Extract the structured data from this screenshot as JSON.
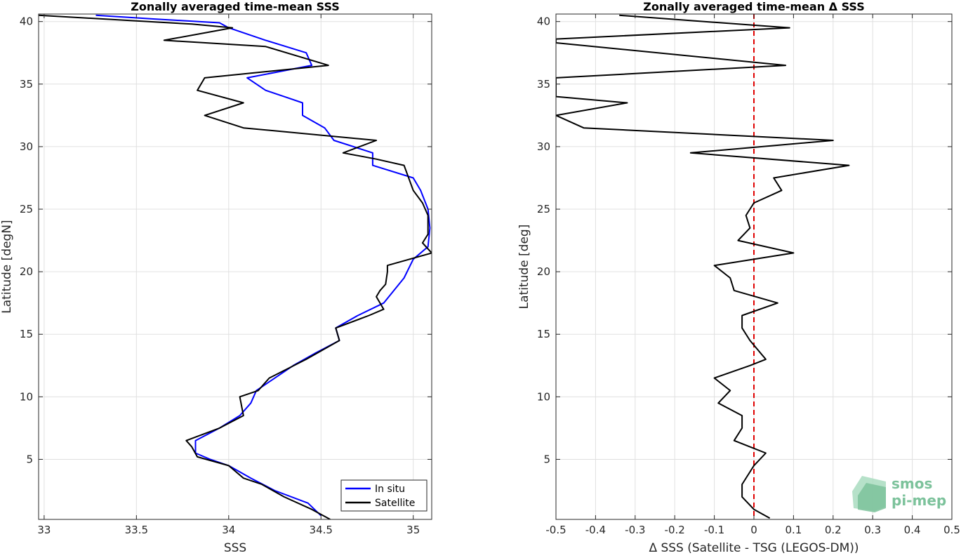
{
  "chart_data": [
    {
      "type": "line",
      "title": "Zonally averaged time-mean SSS",
      "xlabel": "SSS",
      "ylabel": "Latitude [degN]",
      "xlim": [
        32.97,
        35.1
      ],
      "ylim": [
        0.2,
        40.6
      ],
      "xticks": [
        33,
        33.5,
        34,
        34.5,
        35
      ],
      "xtick_labels": [
        "33",
        "33.5",
        "34",
        "34.5",
        "35"
      ],
      "yticks": [
        5,
        10,
        15,
        20,
        25,
        30,
        35,
        40
      ],
      "ytick_labels": [
        "5",
        "10",
        "15",
        "20",
        "25",
        "30",
        "35",
        "40"
      ],
      "grid": true,
      "legend": "bottom-right",
      "series": [
        {
          "name": "In situ",
          "color": "#0000ff",
          "points": [
            [
              34.5,
              0.5
            ],
            [
              34.43,
              1.5
            ],
            [
              34.25,
              2.5
            ],
            [
              34.12,
              3.5
            ],
            [
              34.0,
              4.5
            ],
            [
              33.9,
              5.0
            ],
            [
              33.82,
              5.5
            ],
            [
              33.82,
              6.5
            ],
            [
              33.95,
              7.5
            ],
            [
              34.06,
              8.5
            ],
            [
              34.12,
              9.5
            ],
            [
              34.15,
              10.5
            ],
            [
              34.3,
              12.0
            ],
            [
              34.35,
              12.5
            ],
            [
              34.47,
              13.5
            ],
            [
              34.6,
              14.5
            ],
            [
              34.58,
              15.5
            ],
            [
              34.7,
              16.5
            ],
            [
              34.84,
              17.5
            ],
            [
              34.95,
              19.5
            ],
            [
              35.0,
              21.0
            ],
            [
              35.08,
              22.0
            ],
            [
              35.09,
              23.5
            ],
            [
              35.08,
              25.0
            ],
            [
              35.04,
              26.5
            ],
            [
              35.0,
              27.5
            ],
            [
              34.78,
              28.5
            ],
            [
              34.78,
              29.5
            ],
            [
              34.57,
              30.5
            ],
            [
              34.52,
              31.5
            ],
            [
              34.4,
              32.5
            ],
            [
              34.4,
              33.5
            ],
            [
              34.3,
              34.0
            ],
            [
              34.2,
              34.5
            ],
            [
              34.1,
              35.5
            ],
            [
              34.45,
              36.5
            ],
            [
              34.42,
              37.5
            ],
            [
              34.2,
              38.5
            ],
            [
              34.0,
              39.5
            ],
            [
              33.95,
              39.9
            ],
            [
              33.6,
              40.2
            ],
            [
              33.28,
              40.5
            ]
          ]
        },
        {
          "name": "Satellite",
          "color": "#000000",
          "points": [
            [
              34.55,
              0.2
            ],
            [
              34.45,
              1.0
            ],
            [
              34.3,
              2.0
            ],
            [
              34.18,
              3.0
            ],
            [
              34.08,
              3.5
            ],
            [
              34.0,
              4.5
            ],
            [
              33.83,
              5.2
            ],
            [
              33.8,
              6.0
            ],
            [
              33.77,
              6.5
            ],
            [
              33.95,
              7.5
            ],
            [
              34.08,
              8.5
            ],
            [
              34.06,
              10.0
            ],
            [
              34.16,
              10.5
            ],
            [
              34.22,
              11.5
            ],
            [
              34.42,
              13.0
            ],
            [
              34.6,
              14.5
            ],
            [
              34.58,
              15.5
            ],
            [
              34.76,
              16.5
            ],
            [
              34.84,
              17.0
            ],
            [
              34.8,
              18.0
            ],
            [
              34.82,
              18.5
            ],
            [
              34.85,
              19.0
            ],
            [
              34.86,
              20.0
            ],
            [
              34.86,
              20.5
            ],
            [
              35.1,
              21.5
            ],
            [
              35.05,
              22.3
            ],
            [
              35.08,
              23.0
            ],
            [
              35.08,
              24.5
            ],
            [
              35.05,
              25.5
            ],
            [
              35.0,
              26.5
            ],
            [
              34.95,
              28.5
            ],
            [
              34.8,
              29.0
            ],
            [
              34.62,
              29.5
            ],
            [
              34.8,
              30.5
            ],
            [
              34.08,
              31.5
            ],
            [
              33.87,
              32.5
            ],
            [
              34.08,
              33.5
            ],
            [
              33.83,
              34.5
            ],
            [
              33.87,
              35.5
            ],
            [
              34.54,
              36.5
            ],
            [
              34.2,
              38.0
            ],
            [
              33.65,
              38.5
            ],
            [
              34.02,
              39.5
            ],
            [
              33.8,
              39.8
            ],
            [
              32.97,
              40.5
            ]
          ]
        }
      ],
      "legend_entries": [
        "In situ",
        "Satellite"
      ]
    },
    {
      "type": "line",
      "title": "Zonally averaged time-mean Δ SSS",
      "xlabel": "Δ SSS (Satellite - TSG (LEGOS-DM))",
      "ylabel": "Latitude [deg]",
      "xlim": [
        -0.5,
        0.5
      ],
      "ylim": [
        0.2,
        40.6
      ],
      "xticks": [
        -0.5,
        -0.4,
        -0.3,
        -0.2,
        -0.1,
        0,
        0.1,
        0.2,
        0.3,
        0.4,
        0.5
      ],
      "xtick_labels": [
        "-0.5",
        "-0.4",
        "-0.3",
        "-0.2",
        "-0.1",
        "0",
        "0.1",
        "0.2",
        "0.3",
        "0.4",
        "0.5"
      ],
      "yticks": [
        5,
        10,
        15,
        20,
        25,
        30,
        35,
        40
      ],
      "ytick_labels": [
        "5",
        "10",
        "15",
        "20",
        "25",
        "30",
        "35",
        "40"
      ],
      "grid": true,
      "reference_line": {
        "x": 0,
        "color": "#e00000",
        "style": "dashed"
      },
      "series": [
        {
          "color": "#000000",
          "points": [
            [
              0.04,
              0.3
            ],
            [
              0.0,
              1.0
            ],
            [
              -0.03,
              2.0
            ],
            [
              -0.03,
              3.0
            ],
            [
              0.0,
              4.5
            ],
            [
              0.03,
              5.5
            ],
            [
              -0.05,
              6.5
            ],
            [
              -0.03,
              7.5
            ],
            [
              -0.03,
              8.5
            ],
            [
              -0.09,
              9.5
            ],
            [
              -0.06,
              10.5
            ],
            [
              -0.1,
              11.5
            ],
            [
              -0.01,
              12.5
            ],
            [
              0.03,
              13.0
            ],
            [
              -0.01,
              14.5
            ],
            [
              -0.03,
              15.5
            ],
            [
              -0.03,
              16.5
            ],
            [
              0.06,
              17.5
            ],
            [
              -0.05,
              18.5
            ],
            [
              -0.06,
              19.5
            ],
            [
              -0.1,
              20.5
            ],
            [
              0.1,
              21.5
            ],
            [
              -0.04,
              22.5
            ],
            [
              -0.01,
              23.5
            ],
            [
              -0.02,
              24.5
            ],
            [
              0.0,
              25.5
            ],
            [
              0.07,
              26.5
            ],
            [
              0.05,
              27.5
            ],
            [
              0.24,
              28.5
            ],
            [
              -0.16,
              29.5
            ],
            [
              0.2,
              30.5
            ],
            [
              -0.43,
              31.5
            ],
            [
              -0.5,
              32.5
            ],
            [
              -0.32,
              33.5
            ],
            [
              -0.5,
              34.0
            ],
            [
              -0.5,
              35.5
            ],
            [
              0.08,
              36.5
            ],
            [
              -0.5,
              38.3
            ],
            [
              -0.5,
              38.6
            ],
            [
              0.09,
              39.5
            ],
            [
              -0.34,
              40.5
            ]
          ]
        }
      ]
    }
  ],
  "watermark": {
    "line1": "smos",
    "line2": "pi-mep",
    "color": "#7cc29b"
  }
}
